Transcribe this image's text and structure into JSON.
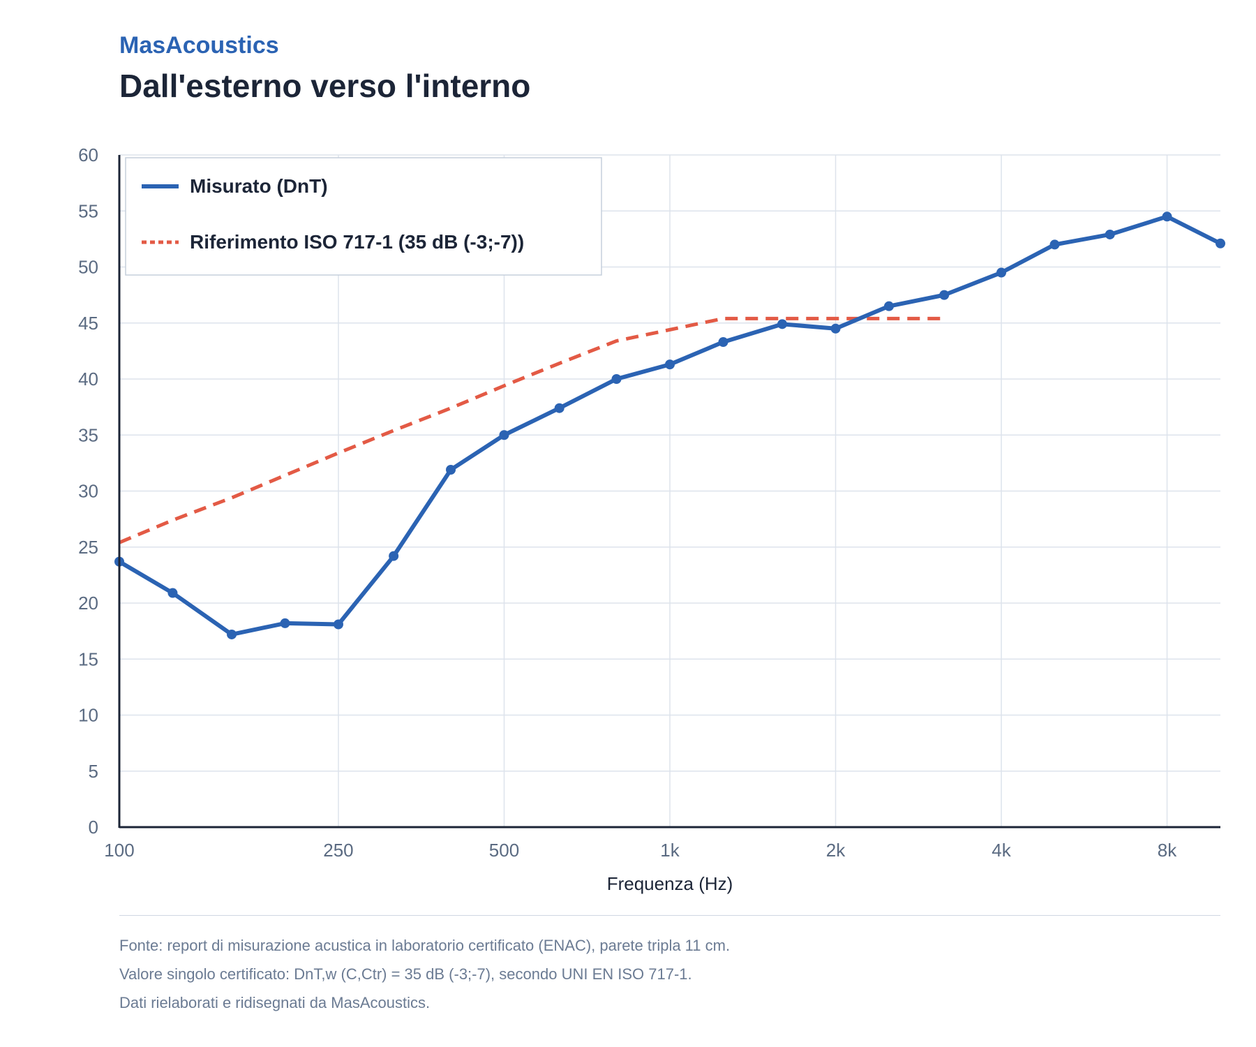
{
  "header": {
    "brand": "MasAcoustics",
    "title": "Dall'esterno verso l'interno"
  },
  "footer": {
    "source": "Fonte: report di misurazione acustica in laboratorio certificato (ENAC), parete tripla 11 cm.",
    "single_value": "Valore singolo certificato: DnT,w (C,Ctr) = 35 dB (-3;-7), secondo UNI EN ISO 717-1.",
    "credits": "Dati rielaborati e ridisegnati da MasAcoustics."
  },
  "colors": {
    "measured": "#2b63b3",
    "reference": "#e35a45",
    "grid": "#dde3ec",
    "axis": "#1c2537",
    "tick_text": "#5b6b82"
  },
  "chart_data": {
    "type": "line",
    "xlabel": "Frequenza (Hz)",
    "ylabel": "",
    "x_scale": "log",
    "xlim": [
      100,
      10000
    ],
    "ylim": [
      0,
      60
    ],
    "x_ticks": [
      {
        "value": 100,
        "label": "100"
      },
      {
        "value": 250,
        "label": "250"
      },
      {
        "value": 500,
        "label": "500"
      },
      {
        "value": 1000,
        "label": "1k"
      },
      {
        "value": 2000,
        "label": "2k"
      },
      {
        "value": 4000,
        "label": "4k"
      },
      {
        "value": 8000,
        "label": "8k"
      }
    ],
    "y_ticks": [
      0,
      5,
      10,
      15,
      20,
      25,
      30,
      35,
      40,
      45,
      50,
      55,
      60
    ],
    "grid": true,
    "legend_position": "top-left",
    "series": [
      {
        "name": "Misurato (DnT)",
        "style": "solid-markers",
        "color": "#2b63b3",
        "x": [
          100,
          125,
          160,
          200,
          250,
          315,
          400,
          500,
          630,
          800,
          1000,
          1250,
          1600,
          2000,
          2500,
          3150,
          4000,
          5000,
          6300,
          8000,
          10000
        ],
        "y": [
          23.7,
          20.9,
          17.2,
          18.2,
          18.1,
          24.2,
          31.9,
          35.0,
          37.4,
          40.0,
          41.3,
          43.3,
          44.9,
          44.5,
          46.5,
          47.5,
          49.5,
          52.0,
          52.9,
          54.5,
          52.1
        ]
      },
      {
        "name": "Riferimento ISO 717-1 (35 dB (-3;-7))",
        "style": "dashed",
        "color": "#e35a45",
        "x": [
          100,
          125,
          160,
          200,
          250,
          315,
          400,
          500,
          630,
          800,
          1000,
          1250,
          1600,
          2000,
          2500,
          3150
        ],
        "y": [
          25.4,
          27.4,
          29.4,
          31.4,
          33.4,
          35.4,
          37.4,
          39.4,
          41.4,
          43.4,
          44.4,
          45.4,
          45.4,
          45.4,
          45.4,
          45.4
        ]
      }
    ]
  }
}
